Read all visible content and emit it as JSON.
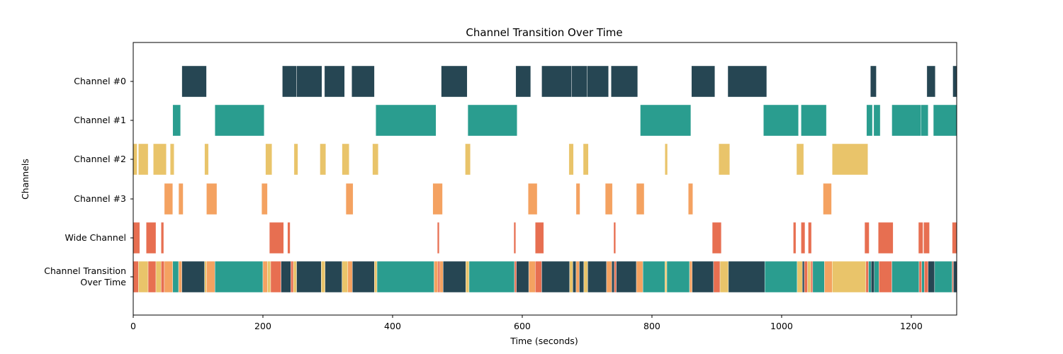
{
  "chart_data": {
    "type": "broken-bar timeline",
    "title": "Channel Transition Over Time",
    "xlabel": "Time (seconds)",
    "ylabel": "Channels",
    "xlim": [
      0,
      1270
    ],
    "xticks": [
      0,
      200,
      400,
      600,
      800,
      1000,
      1200
    ],
    "grid": false,
    "colors": {
      "Channel #0": "#264653",
      "Channel #1": "#2A9D8F",
      "Channel #2": "#E9C46A",
      "Channel #3": "#F4A261",
      "Wide Channel": "#E76F51"
    },
    "rows": [
      {
        "label": "Channel #0",
        "segments": [
          [
            75,
            113
          ],
          [
            230,
            252
          ],
          [
            252,
            291
          ],
          [
            295,
            326
          ],
          [
            337,
            372
          ],
          [
            475,
            515
          ],
          [
            590,
            613
          ],
          [
            630,
            676
          ],
          [
            676,
            700
          ],
          [
            700,
            733
          ],
          [
            737,
            778
          ],
          [
            861,
            897
          ],
          [
            917,
            977
          ],
          [
            1137,
            1146
          ],
          [
            1224,
            1237
          ],
          [
            1264,
            1270
          ]
        ]
      },
      {
        "label": "Channel #1",
        "segments": [
          [
            61,
            73
          ],
          [
            126,
            202
          ],
          [
            374,
            467
          ],
          [
            516,
            592
          ],
          [
            782,
            860
          ],
          [
            972,
            1026
          ],
          [
            1030,
            1069
          ],
          [
            1131,
            1140
          ],
          [
            1142,
            1152
          ],
          [
            1170,
            1215
          ],
          [
            1215,
            1226
          ],
          [
            1234,
            1270
          ]
        ]
      },
      {
        "label": "Channel #2",
        "segments": [
          [
            0,
            6
          ],
          [
            8,
            23
          ],
          [
            31,
            51
          ],
          [
            57,
            63
          ],
          [
            110,
            116
          ],
          [
            204,
            214
          ],
          [
            248,
            254
          ],
          [
            288,
            297
          ],
          [
            322,
            333
          ],
          [
            369,
            378
          ],
          [
            512,
            520
          ],
          [
            672,
            679
          ],
          [
            694,
            702
          ],
          [
            820,
            824
          ],
          [
            903,
            920
          ],
          [
            1023,
            1034
          ],
          [
            1078,
            1133
          ]
        ]
      },
      {
        "label": "Channel #3",
        "segments": [
          [
            48,
            61
          ],
          [
            70,
            77
          ],
          [
            113,
            129
          ],
          [
            198,
            207
          ],
          [
            328,
            339
          ],
          [
            462,
            477
          ],
          [
            609,
            623
          ],
          [
            683,
            689
          ],
          [
            728,
            739
          ],
          [
            776,
            788
          ],
          [
            856,
            863
          ],
          [
            1064,
            1077
          ]
        ]
      },
      {
        "label": "Wide Channel",
        "segments": [
          [
            0,
            10
          ],
          [
            20,
            35
          ],
          [
            43,
            47
          ],
          [
            210,
            232
          ],
          [
            238,
            242
          ],
          [
            469,
            472
          ],
          [
            587,
            590
          ],
          [
            620,
            633
          ],
          [
            741,
            744
          ],
          [
            893,
            907
          ],
          [
            1018,
            1022
          ],
          [
            1030,
            1036
          ],
          [
            1041,
            1046
          ],
          [
            1128,
            1135
          ],
          [
            1149,
            1172
          ],
          [
            1211,
            1218
          ],
          [
            1219,
            1228
          ],
          [
            1263,
            1270
          ]
        ]
      },
      {
        "label": "Channel Transition\nOver Time",
        "segments": [
          {
            "x": [
              0,
              8
            ],
            "channel": "Wide Channel"
          },
          {
            "x": [
              8,
              23
            ],
            "channel": "Channel #2"
          },
          {
            "x": [
              23,
              35
            ],
            "channel": "Wide Channel"
          },
          {
            "x": [
              35,
              43
            ],
            "channel": "Channel #2"
          },
          {
            "x": [
              43,
              48
            ],
            "channel": "Wide Channel"
          },
          {
            "x": [
              48,
              61
            ],
            "channel": "Channel #3"
          },
          {
            "x": [
              61,
              70
            ],
            "channel": "Channel #1"
          },
          {
            "x": [
              70,
              75
            ],
            "channel": "Channel #3"
          },
          {
            "x": [
              75,
              110
            ],
            "channel": "Channel #0"
          },
          {
            "x": [
              110,
              113
            ],
            "channel": "Channel #2"
          },
          {
            "x": [
              113,
              126
            ],
            "channel": "Channel #3"
          },
          {
            "x": [
              126,
              200
            ],
            "channel": "Channel #1"
          },
          {
            "x": [
              200,
              207
            ],
            "channel": "Channel #3"
          },
          {
            "x": [
              207,
              212
            ],
            "channel": "Channel #2"
          },
          {
            "x": [
              212,
              228
            ],
            "channel": "Wide Channel"
          },
          {
            "x": [
              228,
              243
            ],
            "channel": "Channel #0"
          },
          {
            "x": [
              243,
              247
            ],
            "channel": "Wide Channel"
          },
          {
            "x": [
              247,
              252
            ],
            "channel": "Channel #2"
          },
          {
            "x": [
              252,
              290
            ],
            "channel": "Channel #0"
          },
          {
            "x": [
              290,
              296
            ],
            "channel": "Channel #2"
          },
          {
            "x": [
              296,
              322
            ],
            "channel": "Channel #0"
          },
          {
            "x": [
              322,
              331
            ],
            "channel": "Channel #2"
          },
          {
            "x": [
              331,
              338
            ],
            "channel": "Channel #3"
          },
          {
            "x": [
              338,
              372
            ],
            "channel": "Channel #0"
          },
          {
            "x": [
              372,
              376
            ],
            "channel": "Channel #2"
          },
          {
            "x": [
              376,
              464
            ],
            "channel": "Channel #1"
          },
          {
            "x": [
              464,
              470
            ],
            "channel": "Channel #3"
          },
          {
            "x": [
              470,
              473
            ],
            "channel": "Wide Channel"
          },
          {
            "x": [
              473,
              478
            ],
            "channel": "Channel #3"
          },
          {
            "x": [
              478,
              513
            ],
            "channel": "Channel #0"
          },
          {
            "x": [
              513,
              518
            ],
            "channel": "Channel #2"
          },
          {
            "x": [
              518,
              588
            ],
            "channel": "Channel #1"
          },
          {
            "x": [
              588,
              591
            ],
            "channel": "Wide Channel"
          },
          {
            "x": [
              591,
              610
            ],
            "channel": "Channel #0"
          },
          {
            "x": [
              610,
              620
            ],
            "channel": "Channel #3"
          },
          {
            "x": [
              620,
              630
            ],
            "channel": "Wide Channel"
          },
          {
            "x": [
              630,
              673
            ],
            "channel": "Channel #0"
          },
          {
            "x": [
              673,
              678
            ],
            "channel": "Channel #2"
          },
          {
            "x": [
              678,
              683
            ],
            "channel": "Channel #0"
          },
          {
            "x": [
              683,
              688
            ],
            "channel": "Channel #3"
          },
          {
            "x": [
              688,
              695
            ],
            "channel": "Channel #0"
          },
          {
            "x": [
              695,
              701
            ],
            "channel": "Channel #2"
          },
          {
            "x": [
              701,
              730
            ],
            "channel": "Channel #0"
          },
          {
            "x": [
              730,
              738
            ],
            "channel": "Channel #3"
          },
          {
            "x": [
              738,
              742
            ],
            "channel": "Channel #0"
          },
          {
            "x": [
              742,
              745
            ],
            "channel": "Wide Channel"
          },
          {
            "x": [
              745,
              776
            ],
            "channel": "Channel #0"
          },
          {
            "x": [
              776,
              786
            ],
            "channel": "Channel #3"
          },
          {
            "x": [
              786,
              820
            ],
            "channel": "Channel #1"
          },
          {
            "x": [
              820,
              823
            ],
            "channel": "Channel #2"
          },
          {
            "x": [
              823,
              858
            ],
            "channel": "Channel #1"
          },
          {
            "x": [
              858,
              862
            ],
            "channel": "Channel #3"
          },
          {
            "x": [
              862,
              895
            ],
            "channel": "Channel #0"
          },
          {
            "x": [
              895,
              905
            ],
            "channel": "Wide Channel"
          },
          {
            "x": [
              905,
              918
            ],
            "channel": "Channel #2"
          },
          {
            "x": [
              918,
              974
            ],
            "channel": "Channel #0"
          },
          {
            "x": [
              974,
              1024
            ],
            "channel": "Channel #1"
          },
          {
            "x": [
              1024,
              1032
            ],
            "channel": "Channel #2"
          },
          {
            "x": [
              1032,
              1035
            ],
            "channel": "Channel #0"
          },
          {
            "x": [
              1035,
              1040
            ],
            "channel": "Wide Channel"
          },
          {
            "x": [
              1040,
              1045
            ],
            "channel": "Channel #2"
          },
          {
            "x": [
              1045,
              1048
            ],
            "channel": "Wide Channel"
          },
          {
            "x": [
              1048,
              1066
            ],
            "channel": "Channel #1"
          },
          {
            "x": [
              1066,
              1078
            ],
            "channel": "Channel #3"
          },
          {
            "x": [
              1078,
              1130
            ],
            "channel": "Channel #2"
          },
          {
            "x": [
              1130,
              1134
            ],
            "channel": "Wide Channel"
          },
          {
            "x": [
              1134,
              1138
            ],
            "channel": "Channel #1"
          },
          {
            "x": [
              1138,
              1143
            ],
            "channel": "Channel #0"
          },
          {
            "x": [
              1143,
              1150
            ],
            "channel": "Channel #1"
          },
          {
            "x": [
              1150,
              1170
            ],
            "channel": "Wide Channel"
          },
          {
            "x": [
              1170,
              1212
            ],
            "channel": "Channel #1"
          },
          {
            "x": [
              1212,
              1216
            ],
            "channel": "Wide Channel"
          },
          {
            "x": [
              1216,
              1220
            ],
            "channel": "Channel #1"
          },
          {
            "x": [
              1220,
              1226
            ],
            "channel": "Wide Channel"
          },
          {
            "x": [
              1226,
              1236
            ],
            "channel": "Channel #0"
          },
          {
            "x": [
              1236,
              1263
            ],
            "channel": "Channel #1"
          },
          {
            "x": [
              1263,
              1265
            ],
            "channel": "Wide Channel"
          },
          {
            "x": [
              1265,
              1270
            ],
            "channel": "Channel #0"
          }
        ]
      }
    ]
  }
}
